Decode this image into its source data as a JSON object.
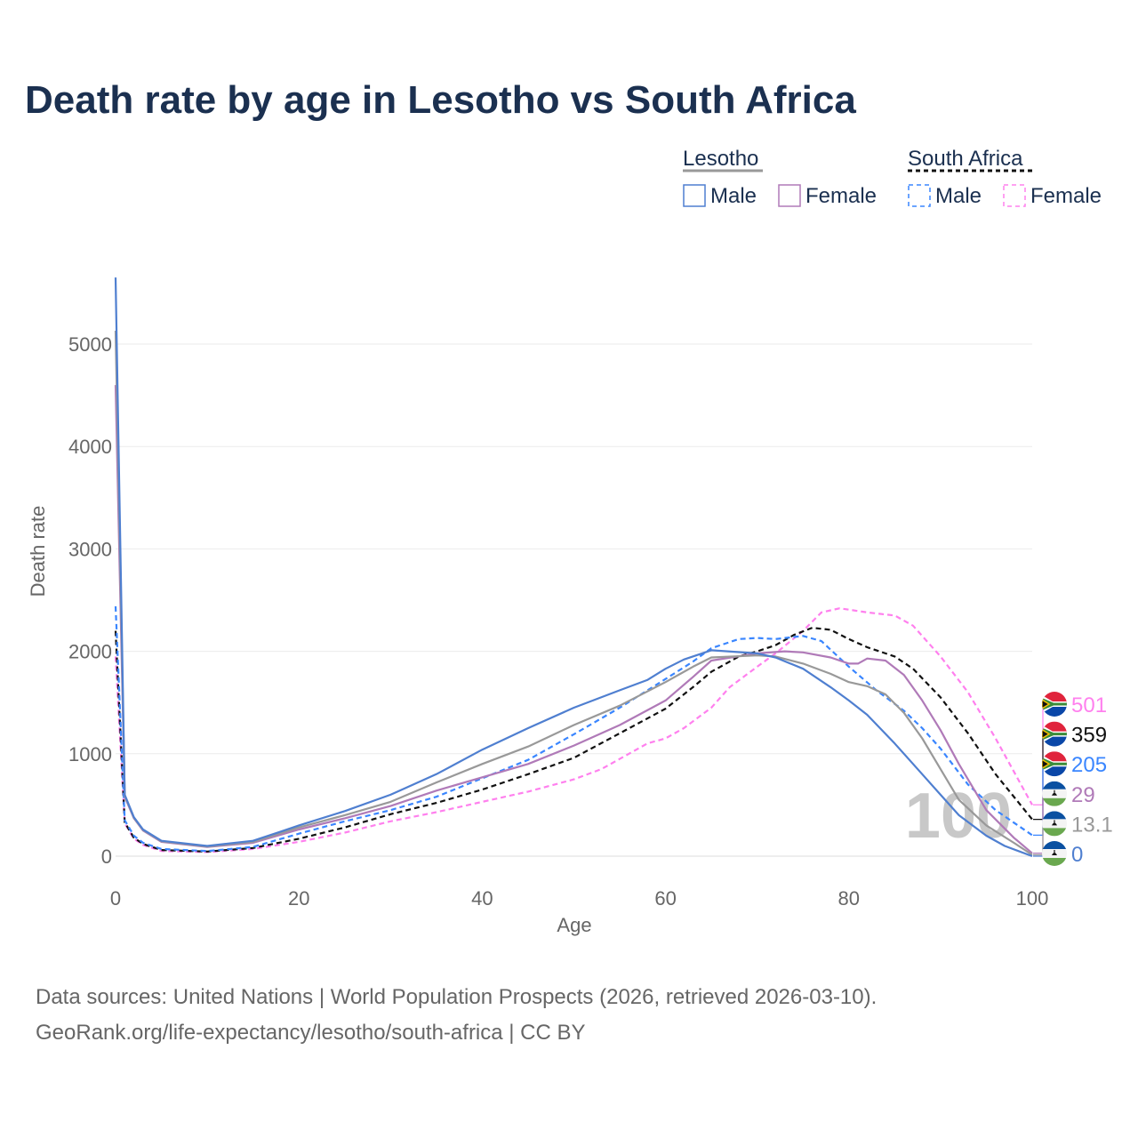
{
  "title": "Death rate by age in Lesotho vs South Africa",
  "legend": {
    "groups": [
      {
        "name": "Lesotho",
        "items": [
          "Male",
          "Female"
        ]
      },
      {
        "name": "South Africa",
        "items": [
          "Male",
          "Female"
        ]
      }
    ]
  },
  "footer": {
    "line1": "Data sources: United Nations | World Population Prospects (2026, retrieved 2026-03-10).",
    "line2": "GeoRank.org/life-expectancy/lesotho/south-africa | CC BY"
  },
  "chart_data": {
    "type": "line",
    "title": "Death rate by age in Lesotho vs South Africa",
    "xlabel": "Age",
    "ylabel": "Death rate",
    "xlim": [
      0,
      100
    ],
    "ylim": [
      0,
      5650
    ],
    "xticks": [
      "0",
      "20",
      "40",
      "60",
      "80",
      "100"
    ],
    "yticks": [
      "0",
      "1000",
      "2000",
      "3000",
      "4000",
      "5000"
    ],
    "grid": true,
    "watermark": "100",
    "series": [
      {
        "name": "South Africa Female",
        "country": "South Africa",
        "color": "#ff80ee",
        "dash": true,
        "end_label": "501",
        "points": [
          [
            0,
            1950
          ],
          [
            1,
            320
          ],
          [
            2,
            170
          ],
          [
            3,
            110
          ],
          [
            5,
            50
          ],
          [
            10,
            40
          ],
          [
            15,
            70
          ],
          [
            20,
            140
          ],
          [
            25,
            230
          ],
          [
            30,
            340
          ],
          [
            35,
            430
          ],
          [
            40,
            530
          ],
          [
            45,
            630
          ],
          [
            50,
            750
          ],
          [
            53,
            850
          ],
          [
            55,
            950
          ],
          [
            58,
            1100
          ],
          [
            60,
            1150
          ],
          [
            62,
            1250
          ],
          [
            65,
            1450
          ],
          [
            67,
            1650
          ],
          [
            70,
            1850
          ],
          [
            72,
            1980
          ],
          [
            75,
            2200
          ],
          [
            77,
            2380
          ],
          [
            79,
            2420
          ],
          [
            82,
            2380
          ],
          [
            85,
            2350
          ],
          [
            87,
            2250
          ],
          [
            90,
            1950
          ],
          [
            93,
            1600
          ],
          [
            96,
            1150
          ],
          [
            100,
            501
          ]
        ]
      },
      {
        "name": "South Africa Total",
        "country": "South Africa",
        "color": "#111111",
        "dash": true,
        "end_label": "359",
        "points": [
          [
            0,
            2200
          ],
          [
            1,
            330
          ],
          [
            2,
            180
          ],
          [
            3,
            120
          ],
          [
            5,
            60
          ],
          [
            10,
            45
          ],
          [
            15,
            80
          ],
          [
            20,
            170
          ],
          [
            25,
            280
          ],
          [
            30,
            410
          ],
          [
            35,
            520
          ],
          [
            40,
            650
          ],
          [
            45,
            800
          ],
          [
            50,
            960
          ],
          [
            55,
            1200
          ],
          [
            60,
            1440
          ],
          [
            63,
            1650
          ],
          [
            65,
            1800
          ],
          [
            68,
            1950
          ],
          [
            70,
            2000
          ],
          [
            72,
            2060
          ],
          [
            74,
            2160
          ],
          [
            76,
            2230
          ],
          [
            78,
            2210
          ],
          [
            80,
            2120
          ],
          [
            82,
            2040
          ],
          [
            85,
            1950
          ],
          [
            87,
            1830
          ],
          [
            90,
            1550
          ],
          [
            93,
            1200
          ],
          [
            96,
            800
          ],
          [
            100,
            359
          ]
        ]
      },
      {
        "name": "South Africa Male",
        "country": "South Africa",
        "color": "#3a86ff",
        "dash": true,
        "end_label": "205",
        "points": [
          [
            0,
            2440
          ],
          [
            1,
            350
          ],
          [
            2,
            200
          ],
          [
            3,
            130
          ],
          [
            5,
            70
          ],
          [
            10,
            50
          ],
          [
            15,
            90
          ],
          [
            20,
            220
          ],
          [
            25,
            340
          ],
          [
            30,
            450
          ],
          [
            35,
            580
          ],
          [
            40,
            760
          ],
          [
            45,
            940
          ],
          [
            50,
            1190
          ],
          [
            55,
            1450
          ],
          [
            60,
            1730
          ],
          [
            63,
            1900
          ],
          [
            65,
            2030
          ],
          [
            68,
            2120
          ],
          [
            70,
            2130
          ],
          [
            72,
            2120
          ],
          [
            75,
            2150
          ],
          [
            77,
            2100
          ],
          [
            80,
            1850
          ],
          [
            83,
            1620
          ],
          [
            86,
            1420
          ],
          [
            88,
            1250
          ],
          [
            90,
            1050
          ],
          [
            93,
            700
          ],
          [
            96,
            450
          ],
          [
            100,
            205
          ]
        ]
      },
      {
        "name": "Lesotho Female",
        "country": "Lesotho",
        "color": "#b07ab8",
        "dash": false,
        "end_label": "29",
        "points": [
          [
            0,
            4600
          ],
          [
            1,
            580
          ],
          [
            2,
            370
          ],
          [
            3,
            250
          ],
          [
            5,
            140
          ],
          [
            10,
            90
          ],
          [
            15,
            130
          ],
          [
            20,
            260
          ],
          [
            25,
            370
          ],
          [
            30,
            490
          ],
          [
            35,
            640
          ],
          [
            40,
            770
          ],
          [
            45,
            900
          ],
          [
            50,
            1080
          ],
          [
            55,
            1280
          ],
          [
            60,
            1520
          ],
          [
            63,
            1750
          ],
          [
            65,
            1910
          ],
          [
            70,
            1980
          ],
          [
            73,
            2000
          ],
          [
            75,
            1990
          ],
          [
            78,
            1940
          ],
          [
            80,
            1880
          ],
          [
            81,
            1880
          ],
          [
            82,
            1930
          ],
          [
            84,
            1910
          ],
          [
            86,
            1770
          ],
          [
            88,
            1520
          ],
          [
            90,
            1230
          ],
          [
            92,
            900
          ],
          [
            95,
            450
          ],
          [
            98,
            180
          ],
          [
            100,
            29
          ]
        ]
      },
      {
        "name": "Lesotho Total",
        "country": "Lesotho",
        "color": "#999999",
        "dash": false,
        "end_label": "13.1",
        "points": [
          [
            0,
            5130
          ],
          [
            1,
            590
          ],
          [
            2,
            375
          ],
          [
            3,
            255
          ],
          [
            5,
            145
          ],
          [
            10,
            95
          ],
          [
            15,
            140
          ],
          [
            20,
            280
          ],
          [
            25,
            400
          ],
          [
            30,
            530
          ],
          [
            35,
            720
          ],
          [
            40,
            900
          ],
          [
            45,
            1070
          ],
          [
            50,
            1280
          ],
          [
            55,
            1470
          ],
          [
            60,
            1700
          ],
          [
            63,
            1850
          ],
          [
            65,
            1940
          ],
          [
            70,
            1960
          ],
          [
            72,
            1950
          ],
          [
            75,
            1880
          ],
          [
            78,
            1780
          ],
          [
            80,
            1700
          ],
          [
            82,
            1660
          ],
          [
            84,
            1580
          ],
          [
            86,
            1400
          ],
          [
            88,
            1150
          ],
          [
            90,
            850
          ],
          [
            92,
            550
          ],
          [
            95,
            300
          ],
          [
            98,
            130
          ],
          [
            100,
            13.1
          ]
        ]
      },
      {
        "name": "Lesotho Male",
        "country": "Lesotho",
        "color": "#4f7fd0",
        "dash": false,
        "end_label": "0",
        "points": [
          [
            0,
            5650
          ],
          [
            1,
            600
          ],
          [
            2,
            380
          ],
          [
            3,
            260
          ],
          [
            5,
            150
          ],
          [
            10,
            100
          ],
          [
            15,
            150
          ],
          [
            18,
            240
          ],
          [
            20,
            300
          ],
          [
            25,
            440
          ],
          [
            30,
            600
          ],
          [
            35,
            800
          ],
          [
            40,
            1040
          ],
          [
            45,
            1250
          ],
          [
            50,
            1450
          ],
          [
            55,
            1620
          ],
          [
            58,
            1720
          ],
          [
            60,
            1830
          ],
          [
            62,
            1920
          ],
          [
            65,
            2010
          ],
          [
            70,
            1980
          ],
          [
            72,
            1940
          ],
          [
            75,
            1830
          ],
          [
            78,
            1650
          ],
          [
            80,
            1520
          ],
          [
            82,
            1380
          ],
          [
            85,
            1100
          ],
          [
            88,
            800
          ],
          [
            90,
            600
          ],
          [
            92,
            400
          ],
          [
            95,
            200
          ],
          [
            97,
            100
          ],
          [
            100,
            0
          ]
        ]
      }
    ]
  }
}
